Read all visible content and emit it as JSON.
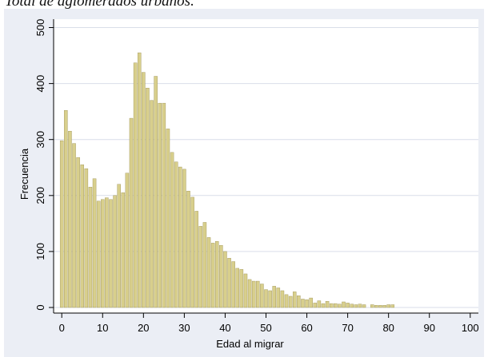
{
  "caption": "Total de aglomerados urbanos.",
  "colors": {
    "bar_fill": "#d8cf8c",
    "bar_stroke": "#9c9154",
    "plot_bg": "#ffffff",
    "frame_bg": "#ebeef5",
    "grid": "#d9dee9"
  },
  "chart_data": {
    "type": "bar",
    "subtype": "histogram",
    "xlabel": "Edad al migrar",
    "ylabel": "Frecuencia",
    "xlim": [
      -2,
      102
    ],
    "ylim": [
      -10,
      515
    ],
    "xticks": [
      0,
      10,
      20,
      30,
      40,
      50,
      60,
      70,
      80,
      90,
      100
    ],
    "yticks": [
      0,
      100,
      200,
      300,
      400,
      500
    ],
    "grid": "horizontal",
    "legend": "none",
    "bin_width": 1,
    "x": [
      0,
      1,
      2,
      3,
      4,
      5,
      6,
      7,
      8,
      9,
      10,
      11,
      12,
      13,
      14,
      15,
      16,
      17,
      18,
      19,
      20,
      21,
      22,
      23,
      24,
      25,
      26,
      27,
      28,
      29,
      30,
      31,
      32,
      33,
      34,
      35,
      36,
      37,
      38,
      39,
      40,
      41,
      42,
      43,
      44,
      45,
      46,
      47,
      48,
      49,
      50,
      51,
      52,
      53,
      54,
      55,
      56,
      57,
      58,
      59,
      60,
      61,
      62,
      63,
      64,
      65,
      66,
      67,
      68,
      69,
      70,
      71,
      72,
      73,
      74,
      75,
      76,
      77,
      78,
      79,
      80,
      81
    ],
    "values": [
      298,
      352,
      315,
      293,
      268,
      255,
      248,
      215,
      230,
      190,
      193,
      196,
      193,
      200,
      220,
      205,
      240,
      338,
      437,
      455,
      420,
      392,
      370,
      413,
      365,
      365,
      319,
      277,
      260,
      251,
      247,
      208,
      197,
      172,
      145,
      152,
      125,
      115,
      118,
      111,
      100,
      88,
      82,
      70,
      68,
      60,
      50,
      47,
      47,
      42,
      32,
      30,
      38,
      35,
      30,
      23,
      20,
      28,
      21,
      15,
      14,
      17,
      8,
      12,
      7,
      11,
      7,
      7,
      6,
      10,
      8,
      6,
      5,
      6,
      5,
      0,
      5,
      4,
      4,
      4,
      5,
      5
    ]
  }
}
